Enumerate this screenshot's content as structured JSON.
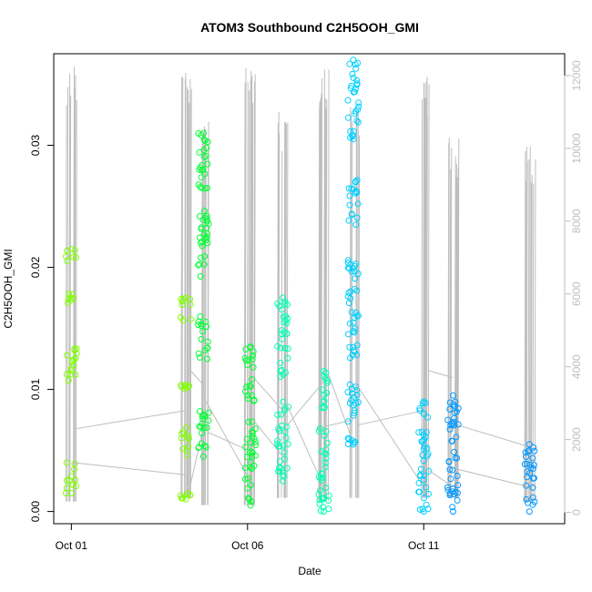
{
  "chart_data": {
    "type": "scatter",
    "title": "ATOM3 Southbound C2H5OOH_GMI",
    "xlabel": "Date",
    "ylabel": "C2H5OOH_GMI",
    "x_ticks": [
      {
        "date": "2017-10-01",
        "label": "Oct 01"
      },
      {
        "date": "2017-10-06",
        "label": "Oct 06"
      },
      {
        "date": "2017-10-11",
        "label": "Oct 11"
      }
    ],
    "y_ticks": [
      "0.00",
      "0.01",
      "0.02",
      "0.03"
    ],
    "y_right_ticks": [
      "0",
      "2000",
      "4000",
      "6000",
      "8000",
      "10000",
      "12000"
    ],
    "xlim": [
      "2017-09-30T12:00",
      "2017-10-15T00:00"
    ],
    "ylim": [
      -0.001,
      0.0375
    ],
    "y_right_lim": [
      -310,
      12600
    ],
    "grid": false,
    "colors": {
      "scale": [
        "#7fff00",
        "#00ff33",
        "#00ffb3",
        "#00d0ff",
        "#0099ff"
      ],
      "altitude_line": "#bebebe"
    },
    "series": [
      {
        "values": [
          {
            "x": "2017-10-01T00:00",
            "min": 0.0015,
            "max": 0.0215,
            "clusters": [
              [
                0.0015,
                0.004
              ],
              [
                0.01,
                0.0135
              ],
              [
                0.0165,
                0.018
              ],
              [
                0.0205,
                0.0215
              ]
            ]
          },
          {
            "x": "2017-10-04T06:00",
            "min": 0.001,
            "max": 0.0175,
            "clusters": [
              [
                0.001,
                0.0015
              ],
              [
                0.0045,
                0.007
              ],
              [
                0.009,
                0.0105
              ],
              [
                0.0155,
                0.0175
              ]
            ]
          },
          {
            "x": "2017-10-04T18:00",
            "min": 0.0045,
            "max": 0.031,
            "clusters": [
              [
                0.005,
                0.009
              ],
              [
                0.0125,
                0.016
              ],
              [
                0.019,
                0.025
              ],
              [
                0.026,
                0.031
              ]
            ]
          },
          {
            "x": "2017-10-06T02:00",
            "min": 0.0005,
            "max": 0.0135,
            "clusters": [
              [
                0.0005,
                0.0075
              ],
              [
                0.009,
                0.0135
              ]
            ]
          },
          {
            "x": "2017-10-07T00:00",
            "min": 0.0025,
            "max": 0.0175,
            "clusters": [
              [
                0.0025,
                0.009
              ],
              [
                0.011,
                0.0175
              ]
            ]
          },
          {
            "x": "2017-10-08T04:00",
            "min": 0.0,
            "max": 0.0115,
            "clusters": [
              [
                0.0,
                0.007
              ],
              [
                0.0085,
                0.0115
              ]
            ]
          },
          {
            "x": "2017-10-09T00:00",
            "min": 0.0055,
            "max": 0.037,
            "clusters": [
              [
                0.0055,
                0.0105
              ],
              [
                0.0125,
                0.021
              ],
              [
                0.0235,
                0.0275
              ],
              [
                0.0305,
                0.037
              ]
            ]
          },
          {
            "x": "2017-10-11T00:00",
            "min": 0.0,
            "max": 0.009,
            "clusters": [
              [
                0.0,
                0.0035
              ],
              [
                0.004,
                0.009
              ]
            ]
          },
          {
            "x": "2017-10-11T20:00",
            "min": 0.0,
            "max": 0.0095,
            "clusters": [
              [
                0.0,
                0.0035
              ],
              [
                0.004,
                0.0095
              ]
            ]
          },
          {
            "x": "2017-10-14T00:00",
            "min": 0.0,
            "max": 0.0055,
            "clusters": [
              [
                0.0,
                0.0055
              ]
            ]
          }
        ]
      }
    ],
    "altitude": [
      {
        "x": "2017-10-01T00:00",
        "min": 300,
        "max": 12300
      },
      {
        "x": "2017-10-04T06:00",
        "min": 400,
        "max": 12300
      },
      {
        "x": "2017-10-04T18:00",
        "min": 200,
        "max": 10800
      },
      {
        "x": "2017-10-06T01:00",
        "min": 200,
        "max": 12300
      },
      {
        "x": "2017-10-07T00:00",
        "min": 400,
        "max": 11000
      },
      {
        "x": "2017-10-08T04:00",
        "min": 300,
        "max": 12200
      },
      {
        "x": "2017-10-09T00:00",
        "min": 400,
        "max": 11500
      },
      {
        "x": "2017-10-11T00:00",
        "min": 400,
        "max": 12000
      },
      {
        "x": "2017-10-11T20:00",
        "min": 400,
        "max": 10300
      },
      {
        "x": "2017-10-14T00:00",
        "min": 300,
        "max": 10200
      }
    ]
  }
}
